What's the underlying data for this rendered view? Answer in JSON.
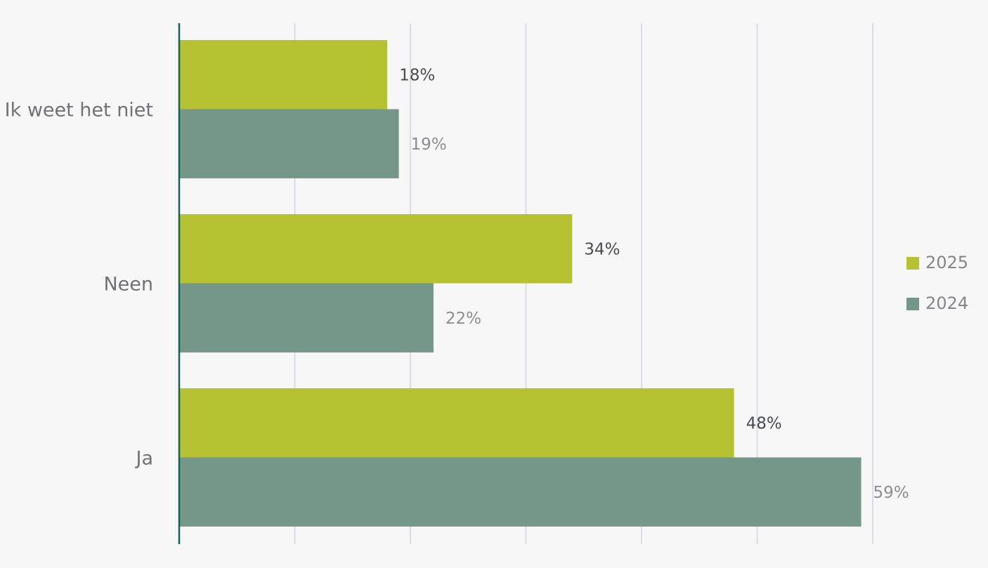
{
  "chart_data": {
    "type": "bar",
    "orientation": "horizontal",
    "categories": [
      "Ik weet het niet",
      "Neen",
      "Ja"
    ],
    "series": [
      {
        "name": "2025",
        "values": [
          18,
          34,
          48
        ],
        "labels": [
          "18%",
          "34%",
          "48%"
        ],
        "color": "#b5c231",
        "label_color": "#4a4c52"
      },
      {
        "name": "2024",
        "values": [
          19,
          22,
          59
        ],
        "labels": [
          "19%",
          "22%",
          "59%"
        ],
        "color": "#759789",
        "label_color": "#8c8e93"
      }
    ],
    "xlim": [
      0,
      60
    ],
    "grid": true,
    "legend_position": "right",
    "axis_color": "#0e6558",
    "grid_color": "#dcdde4"
  }
}
